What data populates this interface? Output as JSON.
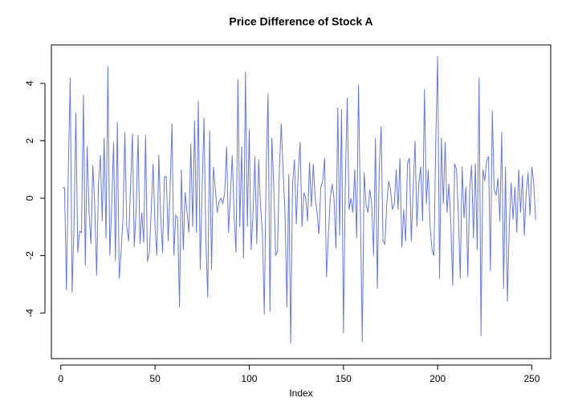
{
  "chart_data": {
    "type": "line",
    "title": "Price Difference of Stock A",
    "x_label": "Index",
    "x": [
      1,
      2,
      3,
      4,
      5,
      6,
      7,
      8,
      9,
      10,
      11,
      12,
      13,
      14,
      15,
      16,
      17,
      18,
      19,
      20,
      21,
      22,
      23,
      24,
      25,
      26,
      27,
      28,
      29,
      30,
      31,
      32,
      33,
      34,
      35,
      36,
      37,
      38,
      39,
      40,
      41,
      42,
      43,
      44,
      45,
      46,
      47,
      48,
      49,
      50,
      51,
      52,
      53,
      54,
      55,
      56,
      57,
      58,
      59,
      60,
      61,
      62,
      63,
      64,
      65,
      66,
      67,
      68,
      69,
      70,
      71,
      72,
      73,
      74,
      75,
      76,
      77,
      78,
      79,
      80,
      81,
      82,
      83,
      84,
      85,
      86,
      87,
      88,
      89,
      90,
      91,
      92,
      93,
      94,
      95,
      96,
      97,
      98,
      99,
      100,
      101,
      102,
      103,
      104,
      105,
      106,
      107,
      108,
      109,
      110,
      111,
      112,
      113,
      114,
      115,
      116,
      117,
      118,
      119,
      120,
      121,
      122,
      123,
      124,
      125,
      126,
      127,
      128,
      129,
      130,
      131,
      132,
      133,
      134,
      135,
      136,
      137,
      138,
      139,
      140,
      141,
      142,
      143,
      144,
      145,
      146,
      147,
      148,
      149,
      150,
      151,
      152,
      153,
      154,
      155,
      156,
      157,
      158,
      159,
      160,
      161,
      162,
      163,
      164,
      165,
      166,
      167,
      168,
      169,
      170,
      171,
      172,
      173,
      174,
      175,
      176,
      177,
      178,
      179,
      180,
      181,
      182,
      183,
      184,
      185,
      186,
      187,
      188,
      189,
      190,
      191,
      192,
      193,
      194,
      195,
      196,
      197,
      198,
      199,
      200,
      201,
      202,
      203,
      204,
      205,
      206,
      207,
      208,
      209,
      210,
      211,
      212,
      213,
      214,
      215,
      216,
      217,
      218,
      219,
      220,
      221,
      222,
      223,
      224,
      225,
      226,
      227,
      228,
      229,
      230,
      231,
      232,
      233,
      234,
      235,
      236,
      237,
      238,
      239,
      240,
      241,
      242,
      243,
      244,
      245,
      246,
      247,
      248,
      249,
      250,
      251,
      252
    ],
    "series": [
      {
        "color": "#6677ee",
        "values": [
          0.38,
          0.35,
          -3.2,
          1.0,
          4.2,
          -3.3,
          -1.0,
          2.97,
          -1.9,
          -1.15,
          -1.2,
          3.6,
          -2.35,
          1.8,
          -0.5,
          -1.6,
          1.15,
          -0.2,
          -2.7,
          0.5,
          1.5,
          -0.8,
          2.1,
          -1.4,
          4.6,
          -2.0,
          -0.3,
          1.95,
          -2.2,
          2.65,
          -2.8,
          -1.9,
          -0.7,
          2.3,
          -1.0,
          -1.5,
          0.4,
          2.25,
          -1.7,
          -0.4,
          2.2,
          -1.6,
          -0.5,
          -1.55,
          2.2,
          -2.2,
          -1.9,
          -0.4,
          1.2,
          -1.0,
          -2.0,
          1.5,
          -0.6,
          -1.9,
          0.75,
          0.75,
          -1.5,
          0.3,
          2.6,
          -2.0,
          -0.6,
          -0.7,
          -3.8,
          1.0,
          -1.8,
          0.2,
          -0.5,
          -1.2,
          1.9,
          -1.0,
          2.7,
          -1.2,
          3.4,
          -2.5,
          0.3,
          2.8,
          -1.5,
          -3.45,
          2.35,
          -2.5,
          1.1,
          0.3,
          -0.5,
          -0.1,
          0.0,
          -0.2,
          0.2,
          1.8,
          -1.2,
          0.1,
          1.5,
          -0.6,
          -1.9,
          4.15,
          -1.0,
          1.8,
          -2.1,
          4.4,
          -1.0,
          2.4,
          -1.8,
          -0.6,
          1.45,
          -1.6,
          1.35,
          -0.3,
          -1.2,
          -4.05,
          1.0,
          3.65,
          -3.95,
          2.1,
          0.5,
          -2.0,
          -1.85,
          1.0,
          2.6,
          0.9,
          -0.5,
          -3.8,
          0.85,
          -5.05,
          0.5,
          1.35,
          -0.9,
          0.9,
          1.95,
          -1.0,
          0.2,
          0.0,
          -0.8,
          1.25,
          -0.3,
          1.2,
          0.0,
          -0.5,
          -1.25,
          0.4,
          0.6,
          1.4,
          -2.75,
          -1.3,
          0.0,
          0.5,
          0.0,
          -1.75,
          3.15,
          -1.3,
          3.1,
          -4.7,
          0.5,
          3.5,
          -0.4,
          0.0,
          -0.5,
          1.0,
          -1.4,
          3.95,
          -0.5,
          -5.0,
          0.9,
          -0.2,
          -0.5,
          0.3,
          -0.2,
          -2.0,
          2.1,
          -3.15,
          1.0,
          2.5,
          -1.5,
          -1.6,
          -0.2,
          0.6,
          0.3,
          -0.4,
          -0.2,
          1.0,
          -0.4,
          1.4,
          -1.7,
          -0.4,
          -1.5,
          1.2,
          1.4,
          -1.5,
          0.3,
          2.0,
          -1.0,
          0.5,
          1.1,
          -0.8,
          3.8,
          -0.2,
          1.0,
          -1.0,
          -1.8,
          -2.0,
          2.0,
          4.95,
          -2.8,
          2.1,
          -0.2,
          1.95,
          -0.5,
          0.5,
          -0.9,
          -3.05,
          1.2,
          1.0,
          -0.6,
          -2.8,
          1.1,
          -0.7,
          0.4,
          -2.75,
          0.3,
          1.15,
          -1.4,
          1.2,
          -1.8,
          4.2,
          -4.8,
          1.0,
          0.6,
          1.3,
          1.45,
          -2.55,
          3.05,
          0.3,
          0.1,
          0.7,
          -0.8,
          2.3,
          -3.15,
          1.1,
          -3.6,
          -1.0,
          0.55,
          -0.75,
          0.4,
          -1.2,
          1.0,
          -0.5,
          0.8,
          -1.3,
          0.2,
          0.9,
          -0.6,
          1.1,
          0.5,
          -0.75
        ]
      }
    ],
    "xlim": [
      -5,
      260
    ],
    "ylim": [
      -5.59,
      5.34
    ],
    "xticks": [
      0,
      50,
      100,
      150,
      200,
      250
    ],
    "yticks": [
      -4,
      -2,
      0,
      2,
      4
    ]
  }
}
